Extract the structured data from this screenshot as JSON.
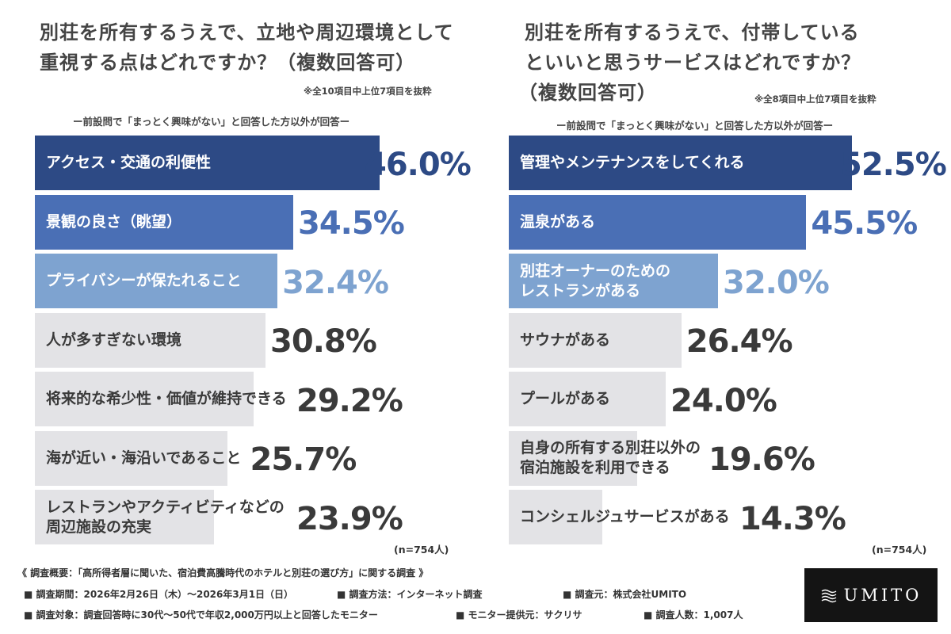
{
  "chart_data": [
    {
      "type": "bar",
      "orientation": "horizontal",
      "title_lines": [
        "別荘を所有するうえで、立地や周辺環境として",
        "重視する点はどれですか？（複数回答可）"
      ],
      "note": "※全10項目中上位7項目を抜粋",
      "subtitle": "ー前設問で「まっとく興味がない」と回答した方以外が回答ー",
      "categories": [
        [
          "アクセス・交通の利便性"
        ],
        [
          "景観の良さ（眺望）"
        ],
        [
          "プライバシーが保たれること"
        ],
        [
          "人が多すぎない環境"
        ],
        [
          "将来的な希少性・価値が維持できる"
        ],
        [
          "海が近い・海沿いであること"
        ],
        [
          "レストランやアクティビティなどの",
          "周辺施設の充実"
        ]
      ],
      "values": [
        46.0,
        34.5,
        32.4,
        30.8,
        29.2,
        25.7,
        23.9
      ],
      "value_labels": [
        "46.0%",
        "34.5%",
        "32.4%",
        "30.8%",
        "29.2%",
        "25.7%",
        "23.9%"
      ],
      "n_label": "(n=754人)",
      "colors": {
        "bars": [
          "#2d4a85",
          "#4a6fb5",
          "#7ea3d0",
          "#e3e3e6",
          "#e3e3e6",
          "#e3e3e6",
          "#e3e3e6"
        ],
        "labels": [
          "#ffffff",
          "#ffffff",
          "#ffffff",
          "#3a3a3a",
          "#3a3a3a",
          "#3a3a3a",
          "#3a3a3a"
        ],
        "values": [
          "#2d4a85",
          "#4a6fb5",
          "#7ea3d0",
          "#3a3a3a",
          "#3a3a3a",
          "#3a3a3a",
          "#3a3a3a"
        ]
      }
    },
    {
      "type": "bar",
      "orientation": "horizontal",
      "title_lines": [
        "別荘を所有するうえで、付帯している",
        "といいと思うサービスはどれですか？",
        "（複数回答可）"
      ],
      "note": "※全8項目中上位7項目を抜粋",
      "subtitle": "ー前設問で「まっとく興味がない」と回答した方以外が回答ー",
      "categories": [
        [
          "管理やメンテナンスをしてくれる"
        ],
        [
          "温泉がある"
        ],
        [
          "別荘オーナーのための",
          "レストランがある"
        ],
        [
          "サウナがある"
        ],
        [
          "プールがある"
        ],
        [
          "自身の所有する別荘以外の",
          "宿泊施設を利用できる"
        ],
        [
          "コンシェルジュサービスがある"
        ]
      ],
      "values": [
        52.5,
        45.5,
        32.0,
        26.4,
        24.0,
        19.6,
        14.3
      ],
      "value_labels": [
        "52.5%",
        "45.5%",
        "32.0%",
        "26.4%",
        "24.0%",
        "19.6%",
        "14.3%"
      ],
      "n_label": "(n=754人)",
      "colors": {
        "bars": [
          "#2d4a85",
          "#4a6fb5",
          "#7ea3d0",
          "#e3e3e6",
          "#e3e3e6",
          "#e3e3e6",
          "#e3e3e6"
        ],
        "labels": [
          "#ffffff",
          "#ffffff",
          "#ffffff",
          "#3a3a3a",
          "#3a3a3a",
          "#3a3a3a",
          "#3a3a3a"
        ],
        "values": [
          "#2d4a85",
          "#4a6fb5",
          "#7ea3d0",
          "#3a3a3a",
          "#3a3a3a",
          "#3a3a3a",
          "#3a3a3a"
        ]
      }
    }
  ],
  "footer": {
    "survey_title": "《 調査概要：「高所得者層に聞いた、宿泊費高騰時代のホテルと別荘の選び方」に関する調査 》",
    "period": "■ 調査期間：2026年2月26日（木）〜2026年3月1日（日）",
    "method": "■ 調査方法：インターネット調査",
    "source": "■ 調査元：株式会社UMITO",
    "target": "■ 調査対象：調査回答時に30代〜50代で年収2,000万円以上と回答したモニター",
    "monitor": "■ モニター提供元：サクリサ",
    "count": "■ 調査人数：1,007人"
  },
  "logo": {
    "text": "UMITO",
    "icon": "wave-icon"
  }
}
